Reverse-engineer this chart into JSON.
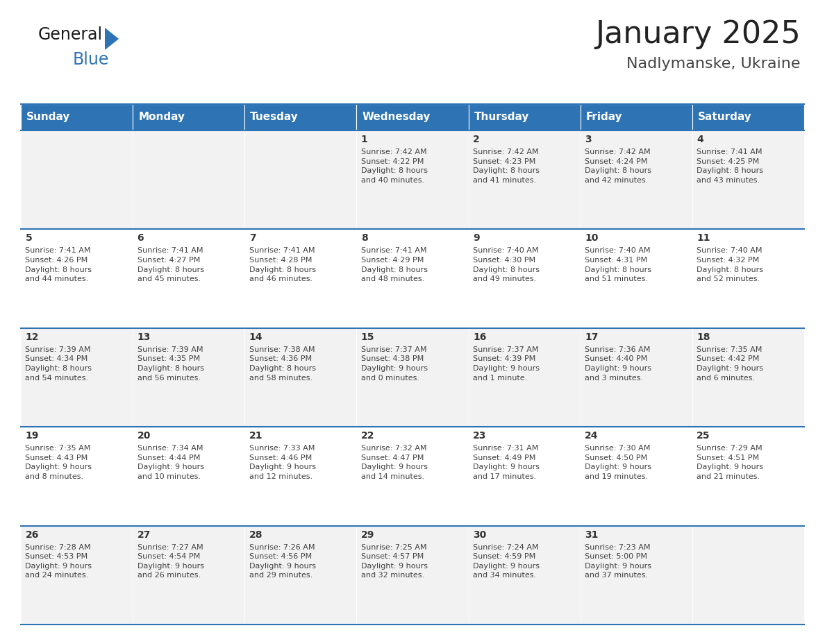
{
  "title": "January 2025",
  "subtitle": "Nadlymanske, Ukraine",
  "header_color": "#2E74B5",
  "header_text_color": "#FFFFFF",
  "cell_bg_odd": "#F2F2F2",
  "cell_bg_even": "#FFFFFF",
  "separator_color": "#2E74B5",
  "text_color": "#404040",
  "day_num_color": "#333333",
  "days_of_week": [
    "Sunday",
    "Monday",
    "Tuesday",
    "Wednesday",
    "Thursday",
    "Friday",
    "Saturday"
  ],
  "calendar_data": [
    [
      {
        "day": "",
        "info": ""
      },
      {
        "day": "",
        "info": ""
      },
      {
        "day": "",
        "info": ""
      },
      {
        "day": "1",
        "info": "Sunrise: 7:42 AM\nSunset: 4:22 PM\nDaylight: 8 hours\nand 40 minutes."
      },
      {
        "day": "2",
        "info": "Sunrise: 7:42 AM\nSunset: 4:23 PM\nDaylight: 8 hours\nand 41 minutes."
      },
      {
        "day": "3",
        "info": "Sunrise: 7:42 AM\nSunset: 4:24 PM\nDaylight: 8 hours\nand 42 minutes."
      },
      {
        "day": "4",
        "info": "Sunrise: 7:41 AM\nSunset: 4:25 PM\nDaylight: 8 hours\nand 43 minutes."
      }
    ],
    [
      {
        "day": "5",
        "info": "Sunrise: 7:41 AM\nSunset: 4:26 PM\nDaylight: 8 hours\nand 44 minutes."
      },
      {
        "day": "6",
        "info": "Sunrise: 7:41 AM\nSunset: 4:27 PM\nDaylight: 8 hours\nand 45 minutes."
      },
      {
        "day": "7",
        "info": "Sunrise: 7:41 AM\nSunset: 4:28 PM\nDaylight: 8 hours\nand 46 minutes."
      },
      {
        "day": "8",
        "info": "Sunrise: 7:41 AM\nSunset: 4:29 PM\nDaylight: 8 hours\nand 48 minutes."
      },
      {
        "day": "9",
        "info": "Sunrise: 7:40 AM\nSunset: 4:30 PM\nDaylight: 8 hours\nand 49 minutes."
      },
      {
        "day": "10",
        "info": "Sunrise: 7:40 AM\nSunset: 4:31 PM\nDaylight: 8 hours\nand 51 minutes."
      },
      {
        "day": "11",
        "info": "Sunrise: 7:40 AM\nSunset: 4:32 PM\nDaylight: 8 hours\nand 52 minutes."
      }
    ],
    [
      {
        "day": "12",
        "info": "Sunrise: 7:39 AM\nSunset: 4:34 PM\nDaylight: 8 hours\nand 54 minutes."
      },
      {
        "day": "13",
        "info": "Sunrise: 7:39 AM\nSunset: 4:35 PM\nDaylight: 8 hours\nand 56 minutes."
      },
      {
        "day": "14",
        "info": "Sunrise: 7:38 AM\nSunset: 4:36 PM\nDaylight: 8 hours\nand 58 minutes."
      },
      {
        "day": "15",
        "info": "Sunrise: 7:37 AM\nSunset: 4:38 PM\nDaylight: 9 hours\nand 0 minutes."
      },
      {
        "day": "16",
        "info": "Sunrise: 7:37 AM\nSunset: 4:39 PM\nDaylight: 9 hours\nand 1 minute."
      },
      {
        "day": "17",
        "info": "Sunrise: 7:36 AM\nSunset: 4:40 PM\nDaylight: 9 hours\nand 3 minutes."
      },
      {
        "day": "18",
        "info": "Sunrise: 7:35 AM\nSunset: 4:42 PM\nDaylight: 9 hours\nand 6 minutes."
      }
    ],
    [
      {
        "day": "19",
        "info": "Sunrise: 7:35 AM\nSunset: 4:43 PM\nDaylight: 9 hours\nand 8 minutes."
      },
      {
        "day": "20",
        "info": "Sunrise: 7:34 AM\nSunset: 4:44 PM\nDaylight: 9 hours\nand 10 minutes."
      },
      {
        "day": "21",
        "info": "Sunrise: 7:33 AM\nSunset: 4:46 PM\nDaylight: 9 hours\nand 12 minutes."
      },
      {
        "day": "22",
        "info": "Sunrise: 7:32 AM\nSunset: 4:47 PM\nDaylight: 9 hours\nand 14 minutes."
      },
      {
        "day": "23",
        "info": "Sunrise: 7:31 AM\nSunset: 4:49 PM\nDaylight: 9 hours\nand 17 minutes."
      },
      {
        "day": "24",
        "info": "Sunrise: 7:30 AM\nSunset: 4:50 PM\nDaylight: 9 hours\nand 19 minutes."
      },
      {
        "day": "25",
        "info": "Sunrise: 7:29 AM\nSunset: 4:51 PM\nDaylight: 9 hours\nand 21 minutes."
      }
    ],
    [
      {
        "day": "26",
        "info": "Sunrise: 7:28 AM\nSunset: 4:53 PM\nDaylight: 9 hours\nand 24 minutes."
      },
      {
        "day": "27",
        "info": "Sunrise: 7:27 AM\nSunset: 4:54 PM\nDaylight: 9 hours\nand 26 minutes."
      },
      {
        "day": "28",
        "info": "Sunrise: 7:26 AM\nSunset: 4:56 PM\nDaylight: 9 hours\nand 29 minutes."
      },
      {
        "day": "29",
        "info": "Sunrise: 7:25 AM\nSunset: 4:57 PM\nDaylight: 9 hours\nand 32 minutes."
      },
      {
        "day": "30",
        "info": "Sunrise: 7:24 AM\nSunset: 4:59 PM\nDaylight: 9 hours\nand 34 minutes."
      },
      {
        "day": "31",
        "info": "Sunrise: 7:23 AM\nSunset: 5:00 PM\nDaylight: 9 hours\nand 37 minutes."
      },
      {
        "day": "",
        "info": ""
      }
    ]
  ],
  "logo_color_general": "#1a1a1a",
  "logo_color_blue": "#2E74B5",
  "logo_triangle_color": "#2E74B5",
  "title_fontsize": 32,
  "subtitle_fontsize": 16,
  "header_fontsize": 11,
  "day_num_fontsize": 10,
  "info_fontsize": 8
}
